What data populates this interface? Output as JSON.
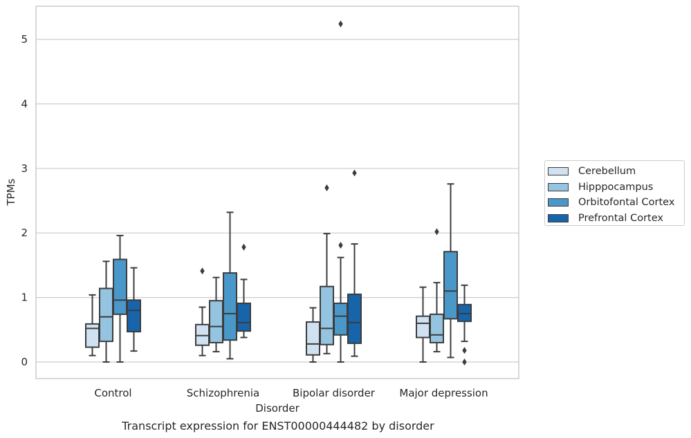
{
  "chart_data": {
    "type": "box",
    "caption": "Transcript expression for ENST00000444482 by disorder",
    "xlabel": "Disorder",
    "ylabel": "TPMs",
    "ylim": [
      -0.25,
      5.5
    ],
    "yticks": [
      "0",
      "1",
      "2",
      "3",
      "4",
      "5"
    ],
    "ytick_values": [
      0,
      1,
      2,
      3,
      4,
      5
    ],
    "categories": [
      "Control",
      "Schizophrenia",
      "Bipolar disorder",
      "Major depression"
    ],
    "grid": "horizontal",
    "legend_position": "right",
    "series": [
      {
        "name": "Cerebellum",
        "color": "#d0e1f2",
        "boxes": [
          {
            "whisker_low": 0.1,
            "q1": 0.23,
            "median": 0.52,
            "q3": 0.59,
            "whisker_high": 1.04,
            "outliers": []
          },
          {
            "whisker_low": 0.1,
            "q1": 0.26,
            "median": 0.41,
            "q3": 0.58,
            "whisker_high": 0.85,
            "outliers": [
              1.41
            ]
          },
          {
            "whisker_low": 0.0,
            "q1": 0.11,
            "median": 0.28,
            "q3": 0.62,
            "whisker_high": 0.84,
            "outliers": []
          },
          {
            "whisker_low": 0.0,
            "q1": 0.38,
            "median": 0.6,
            "q3": 0.71,
            "whisker_high": 1.16,
            "outliers": []
          }
        ]
      },
      {
        "name": "Hipppocampus",
        "color": "#94c4df",
        "boxes": [
          {
            "whisker_low": 0.0,
            "q1": 0.32,
            "median": 0.7,
            "q3": 1.14,
            "whisker_high": 1.56,
            "outliers": []
          },
          {
            "whisker_low": 0.16,
            "q1": 0.3,
            "median": 0.55,
            "q3": 0.95,
            "whisker_high": 1.31,
            "outliers": []
          },
          {
            "whisker_low": 0.13,
            "q1": 0.27,
            "median": 0.52,
            "q3": 1.17,
            "whisker_high": 1.99,
            "outliers": [
              2.7
            ]
          },
          {
            "whisker_low": 0.16,
            "q1": 0.3,
            "median": 0.42,
            "q3": 0.74,
            "whisker_high": 1.23,
            "outliers": [
              2.02
            ]
          }
        ]
      },
      {
        "name": "Orbitofontal Cortex",
        "color": "#4a98c9",
        "boxes": [
          {
            "whisker_low": 0.0,
            "q1": 0.74,
            "median": 0.96,
            "q3": 1.59,
            "whisker_high": 1.96,
            "outliers": []
          },
          {
            "whisker_low": 0.05,
            "q1": 0.34,
            "median": 0.75,
            "q3": 1.38,
            "whisker_high": 2.32,
            "outliers": []
          },
          {
            "whisker_low": 0.0,
            "q1": 0.42,
            "median": 0.71,
            "q3": 0.91,
            "whisker_high": 1.62,
            "outliers": [
              1.81,
              5.24
            ]
          },
          {
            "whisker_low": 0.07,
            "q1": 0.67,
            "median": 1.1,
            "q3": 1.71,
            "whisker_high": 2.76,
            "outliers": []
          }
        ]
      },
      {
        "name": "Prefrontal Cortex",
        "color": "#1764ab",
        "boxes": [
          {
            "whisker_low": 0.17,
            "q1": 0.47,
            "median": 0.8,
            "q3": 0.96,
            "whisker_high": 1.46,
            "outliers": []
          },
          {
            "whisker_low": 0.38,
            "q1": 0.48,
            "median": 0.61,
            "q3": 0.91,
            "whisker_high": 1.28,
            "outliers": [
              1.78
            ]
          },
          {
            "whisker_low": 0.09,
            "q1": 0.29,
            "median": 0.61,
            "q3": 1.05,
            "whisker_high": 1.83,
            "outliers": [
              2.93
            ]
          },
          {
            "whisker_low": 0.32,
            "q1": 0.63,
            "median": 0.75,
            "q3": 0.89,
            "whisker_high": 1.19,
            "outliers": [
              0.0,
              0.18
            ]
          }
        ]
      }
    ]
  }
}
